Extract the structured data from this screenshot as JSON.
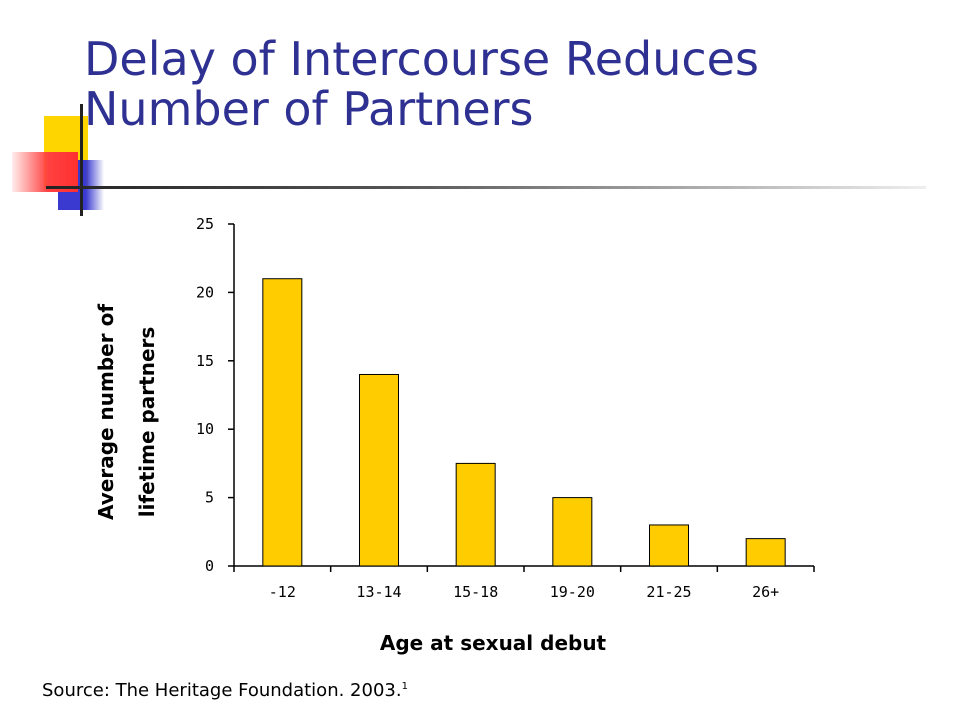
{
  "slide": {
    "title_line1": "Delay of Intercourse Reduces",
    "title_line2": "Number of Partners",
    "source": "Source: The Heritage Foundation. 2003.",
    "source_footnote": "1"
  },
  "colors": {
    "title": "#2e3192",
    "bar_fill": "#ffcc00",
    "bar_stroke": "#000000"
  },
  "chart_data": {
    "type": "bar",
    "categories": [
      "-12",
      "13-14",
      "15-18",
      "19-20",
      "21-25",
      "26+"
    ],
    "values": [
      21,
      14,
      7.5,
      5,
      3,
      2
    ],
    "ylabel_line1": "Average number of",
    "ylabel_line2": "lifetime partners",
    "xlabel": "Age at sexual debut",
    "ylim": [
      0,
      25
    ],
    "yticks": [
      "0",
      "5",
      "10",
      "15",
      "20",
      "25"
    ],
    "ytick_values": [
      0,
      5,
      10,
      15,
      20,
      25
    ],
    "grid": false,
    "legend": "none"
  }
}
